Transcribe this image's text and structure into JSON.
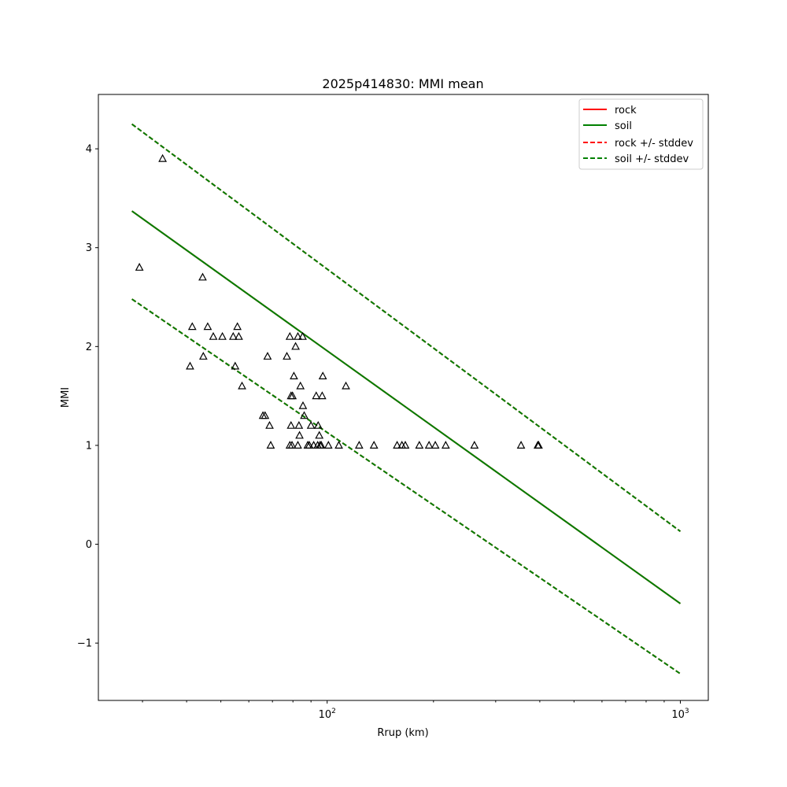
{
  "chart_data": {
    "type": "scatter",
    "title": "2025p414830: MMI mean",
    "xlabel": "Rrup (km)",
    "ylabel": "MMI",
    "xscale": "log",
    "xlim": [
      22.5,
      1200
    ],
    "ylim": [
      -1.58,
      4.55
    ],
    "yticks": [
      -1,
      0,
      1,
      2,
      3,
      4
    ],
    "yticklabels": [
      "−1",
      "0",
      "1",
      "2",
      "3",
      "4"
    ],
    "xticks": [
      100,
      1000
    ],
    "xtick_base": "10",
    "xtick_exps": [
      "2",
      "3"
    ],
    "grid": false,
    "legend_position": "upper-right",
    "legend": [
      "rock",
      "soil",
      "rock +/- stddev",
      "soil +/- stddev"
    ],
    "colors": {
      "rock": "#ff0000",
      "soil": "#008000",
      "overlap": "#336600",
      "marker": "#000000"
    },
    "series": [
      {
        "name": "rock",
        "style": "solid",
        "color": "#ff0000",
        "x": [
          28,
          1000
        ],
        "y": [
          3.37,
          -0.6
        ]
      },
      {
        "name": "soil",
        "style": "solid",
        "color": "#008000",
        "x": [
          28,
          1000
        ],
        "y": [
          3.37,
          -0.6
        ]
      },
      {
        "name": "rock +/- stddev",
        "style": "dashed",
        "color": "#ff0000",
        "upper": {
          "x": [
            28,
            1000
          ],
          "y": [
            4.25,
            0.13
          ]
        },
        "lower": {
          "x": [
            28,
            1000
          ],
          "y": [
            2.48,
            -1.31
          ]
        }
      },
      {
        "name": "soil +/- stddev",
        "style": "dashed",
        "color": "#008000",
        "upper": {
          "x": [
            28,
            1000
          ],
          "y": [
            4.25,
            0.13
          ]
        },
        "lower": {
          "x": [
            28,
            1000
          ],
          "y": [
            2.48,
            -1.31
          ]
        }
      }
    ],
    "points": [
      [
        29.4,
        2.8
      ],
      [
        34.2,
        3.9
      ],
      [
        40.9,
        1.8
      ],
      [
        41.5,
        2.2
      ],
      [
        44.4,
        2.7
      ],
      [
        44.6,
        1.9
      ],
      [
        45.9,
        2.2
      ],
      [
        47.6,
        2.1
      ],
      [
        50.5,
        2.1
      ],
      [
        54.2,
        2.1
      ],
      [
        54.9,
        1.8
      ],
      [
        55.7,
        2.2
      ],
      [
        56.2,
        2.1
      ],
      [
        57.4,
        1.6
      ],
      [
        65.8,
        1.3
      ],
      [
        66.7,
        1.3
      ],
      [
        67.8,
        1.9
      ],
      [
        68.7,
        1.2
      ],
      [
        69.2,
        1.0
      ],
      [
        76.9,
        1.9
      ],
      [
        78.4,
        2.1
      ],
      [
        78.4,
        1.0
      ],
      [
        79.0,
        1.2
      ],
      [
        79.0,
        1.5
      ],
      [
        79.5,
        1.0
      ],
      [
        79.8,
        1.5
      ],
      [
        80.5,
        1.7
      ],
      [
        81.4,
        2.0
      ],
      [
        82.6,
        2.1
      ],
      [
        82.6,
        1.0
      ],
      [
        83.2,
        1.2
      ],
      [
        83.5,
        1.1
      ],
      [
        84.0,
        1.6
      ],
      [
        85.2,
        2.1
      ],
      [
        85.4,
        1.4
      ],
      [
        86.1,
        1.3
      ],
      [
        88.1,
        1.0
      ],
      [
        89.0,
        1.0
      ],
      [
        90.0,
        1.2
      ],
      [
        91.6,
        1.0
      ],
      [
        93.1,
        1.5
      ],
      [
        94.0,
        1.0
      ],
      [
        94.3,
        1.2
      ],
      [
        95.0,
        1.1
      ],
      [
        95.5,
        1.0
      ],
      [
        96.2,
        1.0
      ],
      [
        96.8,
        1.5
      ],
      [
        97.2,
        1.7
      ],
      [
        100.8,
        1.0
      ],
      [
        107.9,
        1.0
      ],
      [
        113.0,
        1.6
      ],
      [
        123.2,
        1.0
      ],
      [
        135.7,
        1.0
      ],
      [
        157.8,
        1.0
      ],
      [
        162.8,
        1.0
      ],
      [
        166.4,
        1.0
      ],
      [
        182.4,
        1.0
      ],
      [
        194.3,
        1.0
      ],
      [
        202.4,
        1.0
      ],
      [
        216.6,
        1.0
      ],
      [
        261.2,
        1.0
      ],
      [
        354.0,
        1.0
      ],
      [
        394.8,
        1.0
      ],
      [
        397.0,
        1.0
      ]
    ]
  }
}
